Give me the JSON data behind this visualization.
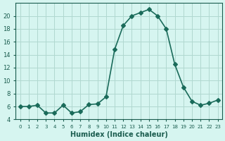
{
  "x": [
    0,
    1,
    2,
    3,
    4,
    5,
    6,
    7,
    8,
    9,
    10,
    11,
    12,
    13,
    14,
    15,
    16,
    17,
    18,
    19,
    20,
    21,
    22,
    23
  ],
  "y": [
    6.0,
    6.0,
    6.2,
    5.0,
    5.0,
    6.2,
    5.0,
    5.2,
    6.3,
    6.4,
    7.5,
    14.8,
    18.5,
    20.0,
    20.5,
    21.0,
    20.0,
    18.0,
    12.5,
    9.0,
    6.8,
    6.2,
    6.5,
    7.0
  ],
  "xlabel": "Humidex (Indice chaleur)",
  "ylim": [
    4,
    22
  ],
  "xlim": [
    -0.5,
    23.5
  ],
  "yticks": [
    4,
    6,
    8,
    10,
    12,
    14,
    16,
    18,
    20
  ],
  "xtick_labels": [
    "0",
    "1",
    "2",
    "3",
    "4",
    "5",
    "6",
    "7",
    "8",
    "9",
    "10",
    "11",
    "12",
    "13",
    "14",
    "15",
    "16",
    "17",
    "18",
    "19",
    "20",
    "21",
    "22",
    "23"
  ],
  "line_color": "#1a6b5a",
  "marker": "D",
  "marker_size": 3,
  "bg_color": "#d6f5f0",
  "grid_color": "#b0d8d0",
  "font_color": "#1a5c4e"
}
